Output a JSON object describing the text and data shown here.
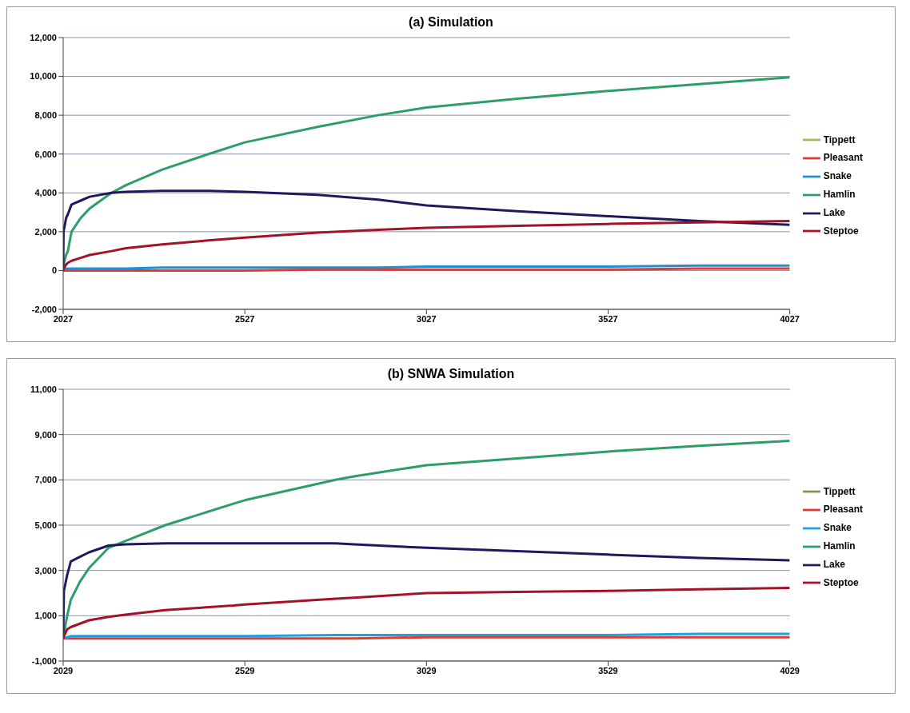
{
  "chart_data": [
    {
      "type": "line",
      "title": "(a) Simulation",
      "x": [
        2027,
        2028,
        2035,
        2040,
        2050,
        2075,
        2100,
        2160,
        2200,
        2300,
        2427,
        2527,
        2727,
        2894,
        3027,
        3277,
        3527,
        3777,
        4027
      ],
      "series": [
        {
          "name": "Tippett",
          "color": "#9bbb59",
          "values": [
            null,
            null,
            null,
            null,
            null,
            null,
            null,
            null,
            null,
            null,
            null,
            null,
            null,
            null,
            null,
            null,
            null,
            null,
            null
          ]
        },
        {
          "name": "Pleasant",
          "color": "#e03c31",
          "values": [
            0,
            0,
            0,
            0,
            0,
            0,
            0,
            0,
            0,
            0,
            0,
            0,
            50,
            50,
            50,
            50,
            50,
            100,
            100
          ]
        },
        {
          "name": "Snake",
          "color": "#1f8fd6",
          "values": [
            0,
            50,
            100,
            100,
            100,
            100,
            100,
            100,
            100,
            150,
            150,
            150,
            150,
            150,
            200,
            200,
            200,
            250,
            250
          ]
        },
        {
          "name": "Hamlin",
          "color": "#2e9e68",
          "values": [
            0,
            300,
            800,
            1000,
            2000,
            2700,
            3200,
            4000,
            4400,
            5200,
            6000,
            6600,
            7400,
            8000,
            8400,
            8850,
            9250,
            9600,
            9950
          ]
        },
        {
          "name": "Lake",
          "color": "#1f1a5e",
          "values": [
            0,
            2000,
            2700,
            2900,
            3400,
            3600,
            3800,
            4000,
            4050,
            4100,
            4100,
            4050,
            3900,
            3650,
            3350,
            3050,
            2800,
            2550,
            2350
          ]
        },
        {
          "name": "Steptoe",
          "color": "#a3122a",
          "values": [
            0,
            100,
            300,
            400,
            500,
            650,
            800,
            1000,
            1150,
            1350,
            1550,
            1700,
            1950,
            2100,
            2200,
            2300,
            2400,
            2480,
            2550
          ]
        }
      ],
      "xlim": [
        2027,
        4027
      ],
      "xticks": [
        2027,
        2527,
        3027,
        3527,
        4027
      ],
      "ylim": [
        -2000,
        12000
      ],
      "yticks": [
        {
          "value": -2000,
          "label": "-2,000"
        },
        0,
        {
          "value": 2000,
          "label": "2,000"
        },
        {
          "value": 4000,
          "label": "4,000"
        },
        {
          "value": 6000,
          "label": "6,000"
        },
        {
          "value": 8000,
          "label": "8,000"
        },
        {
          "value": 10000,
          "label": "10,000"
        },
        {
          "value": 12000,
          "label": "12,000"
        }
      ],
      "grid": "y",
      "legend": "right",
      "marker": "none",
      "line_style": "solid"
    },
    {
      "type": "line",
      "title": "(b) SNWA Simulation",
      "x": [
        2029,
        2031,
        2040,
        2050,
        2075,
        2100,
        2154,
        2200,
        2310,
        2498,
        2529,
        2779,
        2829,
        3029,
        3279,
        3529,
        3779,
        4029
      ],
      "series": [
        {
          "name": "Tippett",
          "color": "#7f9a55",
          "values": [
            null,
            null,
            null,
            null,
            null,
            null,
            null,
            null,
            null,
            null,
            null,
            null,
            null,
            null,
            null,
            null,
            null,
            null
          ]
        },
        {
          "name": "Pleasant",
          "color": "#e03c31",
          "values": [
            0,
            0,
            0,
            0,
            0,
            0,
            0,
            0,
            0,
            0,
            0,
            0,
            0,
            50,
            50,
            50,
            50,
            50
          ]
        },
        {
          "name": "Snake",
          "color": "#1fa0e0",
          "values": [
            0,
            50,
            50,
            100,
            100,
            100,
            100,
            100,
            100,
            100,
            100,
            150,
            150,
            150,
            150,
            150,
            200,
            200
          ]
        },
        {
          "name": "Hamlin",
          "color": "#2e9e68",
          "values": [
            0,
            200,
            1000,
            1700,
            2500,
            3100,
            4000,
            4300,
            5000,
            5950,
            6100,
            7000,
            7150,
            7650,
            7950,
            8250,
            8500,
            8720
          ]
        },
        {
          "name": "Lake",
          "color": "#1f1a5e",
          "values": [
            0,
            2100,
            2800,
            3400,
            3600,
            3800,
            4100,
            4150,
            4200,
            4200,
            4200,
            4200,
            4150,
            4000,
            3850,
            3700,
            3550,
            3450
          ]
        },
        {
          "name": "Steptoe",
          "color": "#a3122a",
          "values": [
            0,
            100,
            400,
            500,
            650,
            800,
            950,
            1050,
            1250,
            1450,
            1500,
            1750,
            1800,
            2000,
            2050,
            2100,
            2170,
            2230
          ]
        }
      ],
      "xlim": [
        2029,
        4029
      ],
      "xticks": [
        2029,
        2529,
        3029,
        3529,
        4029
      ],
      "ylim": [
        -1000,
        11000
      ],
      "yticks": [
        {
          "value": -1000,
          "label": "-1,000"
        },
        {
          "value": 1000,
          "label": "1,000"
        },
        {
          "value": 3000,
          "label": "3,000"
        },
        {
          "value": 5000,
          "label": "5,000"
        },
        {
          "value": 7000,
          "label": "7,000"
        },
        {
          "value": 9000,
          "label": "9,000"
        },
        {
          "value": 11000,
          "label": "11,000"
        }
      ],
      "grid": "y",
      "legend": "right",
      "marker": "none",
      "line_style": "solid"
    }
  ]
}
